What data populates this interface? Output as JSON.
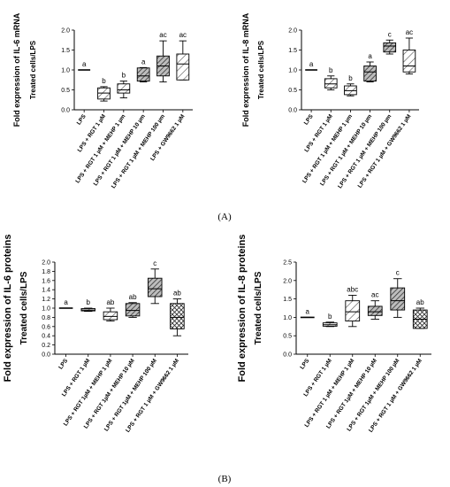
{
  "panel_labels": [
    "(A)",
    "(B)"
  ],
  "chart_data": [
    {
      "type": "box",
      "panel": "A",
      "ylabel": "Fold expression of IL-6 mRNA",
      "ylabel2": "Treated cells/LPS",
      "ylim": [
        0,
        2.0
      ],
      "yticks": [
        0.0,
        0.5,
        1.0,
        1.5,
        2.0
      ],
      "categories": [
        "LPS",
        "LPS + RGT 1 µM",
        "LPS + RGT 1 µM + MEHP 1 µm",
        "LPS + RGT 1 µM + MEHP 10 µm",
        "LPS + RGT 1 µM + MEHP 100 µm",
        "LPS + GW9662 1 µM"
      ],
      "boxes": [
        {
          "min": 1.0,
          "q1": 1.0,
          "median": 1.0,
          "q3": 1.0,
          "max": 1.0,
          "fill": "line",
          "label": "a"
        },
        {
          "min": 0.22,
          "q1": 0.27,
          "median": 0.42,
          "q3": 0.55,
          "max": 0.58,
          "fill": "hatch-light",
          "label": "b"
        },
        {
          "min": 0.3,
          "q1": 0.42,
          "median": 0.5,
          "q3": 0.65,
          "max": 0.72,
          "fill": "hatch-light",
          "label": "b"
        },
        {
          "min": 0.7,
          "q1": 0.72,
          "median": 0.85,
          "q3": 1.05,
          "max": 1.06,
          "fill": "hatch-dense",
          "label": "a"
        },
        {
          "min": 0.7,
          "q1": 0.85,
          "median": 1.1,
          "q3": 1.35,
          "max": 1.73,
          "fill": "hatch-dense",
          "label": "ac"
        },
        {
          "min": 0.75,
          "q1": 0.75,
          "median": 1.15,
          "q3": 1.4,
          "max": 1.73,
          "fill": "hatch-light",
          "label": "ac"
        }
      ]
    },
    {
      "type": "box",
      "panel": "A",
      "ylabel": "Fold expression of IL-8 mRNA",
      "ylabel2": "Treated cells/LPS",
      "ylim": [
        0,
        2.0
      ],
      "yticks": [
        0.0,
        0.5,
        1.0,
        1.5,
        2.0
      ],
      "categories": [
        "LPS",
        "LPS + RGT 1 µM",
        "LPS + RGT 1 µM + MEHP 1 µm",
        "LPS + RGT 1 µM + MEHP 10 µm",
        "LPS + RGT 1 µM + MEHP 100 µm",
        "LPS + RGT 1 µM + GW9662 1 µM"
      ],
      "boxes": [
        {
          "min": 1.0,
          "q1": 1.0,
          "median": 1.0,
          "q3": 1.0,
          "max": 1.0,
          "fill": "line",
          "label": "a"
        },
        {
          "min": 0.5,
          "q1": 0.55,
          "median": 0.65,
          "q3": 0.78,
          "max": 0.85,
          "fill": "hatch-light",
          "label": "b"
        },
        {
          "min": 0.35,
          "q1": 0.38,
          "median": 0.48,
          "q3": 0.6,
          "max": 0.65,
          "fill": "hatch-light",
          "label": "b"
        },
        {
          "min": 0.7,
          "q1": 0.72,
          "median": 0.95,
          "q3": 1.1,
          "max": 1.2,
          "fill": "hatch-dense",
          "label": "a"
        },
        {
          "min": 1.4,
          "q1": 1.45,
          "median": 1.6,
          "q3": 1.68,
          "max": 1.75,
          "fill": "hatch-dense",
          "label": "c"
        },
        {
          "min": 0.9,
          "q1": 0.95,
          "median": 1.1,
          "q3": 1.5,
          "max": 1.8,
          "fill": "hatch-light",
          "label": "ac"
        }
      ]
    },
    {
      "type": "box",
      "panel": "B",
      "ylabel": "Fold expression of IL-6 proteins",
      "ylabel2": "Treated cells/LPS",
      "ylim": [
        0,
        2.0
      ],
      "yticks": [
        0.0,
        0.2,
        0.4,
        0.6,
        0.8,
        1.0,
        1.2,
        1.4,
        1.6,
        1.8,
        2.0
      ],
      "categories": [
        "LPS",
        "LPS + RGT 1 µM",
        "LPS + RGT 1µM + MEHP 1 µM",
        "LPS + RGT 1µM + MEHP 10 µM",
        "LPS + RGT 1µM + MEHP 100 µM",
        "LPS + RGT 1 µM + GW9662 1 µM"
      ],
      "boxes": [
        {
          "min": 1.0,
          "q1": 1.0,
          "median": 1.0,
          "q3": 1.0,
          "max": 1.0,
          "fill": "line",
          "label": "a"
        },
        {
          "min": 0.93,
          "q1": 0.94,
          "median": 0.96,
          "q3": 0.99,
          "max": 1.0,
          "fill": "hatch-light",
          "label": "b"
        },
        {
          "min": 0.72,
          "q1": 0.75,
          "median": 0.82,
          "q3": 0.92,
          "max": 1.0,
          "fill": "hatch-light",
          "label": "ab"
        },
        {
          "min": 0.8,
          "q1": 0.83,
          "median": 0.95,
          "q3": 1.1,
          "max": 1.12,
          "fill": "hatch-dense",
          "label": "ab"
        },
        {
          "min": 1.1,
          "q1": 1.25,
          "median": 1.42,
          "q3": 1.65,
          "max": 1.85,
          "fill": "hatch-dense",
          "label": "c"
        },
        {
          "min": 0.4,
          "q1": 0.55,
          "median": 0.8,
          "q3": 1.1,
          "max": 1.2,
          "fill": "cross",
          "label": "ab"
        }
      ]
    },
    {
      "type": "box",
      "panel": "B",
      "ylabel": "Fold expression of IL-8 proteins",
      "ylabel2": "Treated cells/LPS",
      "ylim": [
        0,
        2.5
      ],
      "yticks": [
        0.0,
        0.5,
        1.0,
        1.5,
        2.0,
        2.5
      ],
      "categories": [
        "LPS",
        "LPS + RGT 1 µM",
        "LPS + RGT 1 µM + MEHP 1 µM",
        "LPS + RGT 1µM + MEHP 10 µM",
        "LPS + RGT 1µM + MEHP 100 µM",
        "LPS + RGT 1 µM + GW9662 1 µM"
      ],
      "boxes": [
        {
          "min": 1.0,
          "q1": 1.0,
          "median": 1.0,
          "q3": 1.0,
          "max": 1.0,
          "fill": "line",
          "label": "a"
        },
        {
          "min": 0.75,
          "q1": 0.76,
          "median": 0.8,
          "q3": 0.85,
          "max": 0.87,
          "fill": "hatch-light",
          "label": "b"
        },
        {
          "min": 0.75,
          "q1": 0.9,
          "median": 1.15,
          "q3": 1.45,
          "max": 1.6,
          "fill": "hatch-light",
          "label": "abc"
        },
        {
          "min": 0.95,
          "q1": 1.05,
          "median": 1.15,
          "q3": 1.3,
          "max": 1.45,
          "fill": "hatch-dense",
          "label": "ac"
        },
        {
          "min": 1.0,
          "q1": 1.2,
          "median": 1.45,
          "q3": 1.8,
          "max": 2.05,
          "fill": "hatch-dense",
          "label": "c"
        },
        {
          "min": 0.7,
          "q1": 0.7,
          "median": 0.95,
          "q3": 1.2,
          "max": 1.25,
          "fill": "cross",
          "label": "ab"
        }
      ]
    }
  ]
}
